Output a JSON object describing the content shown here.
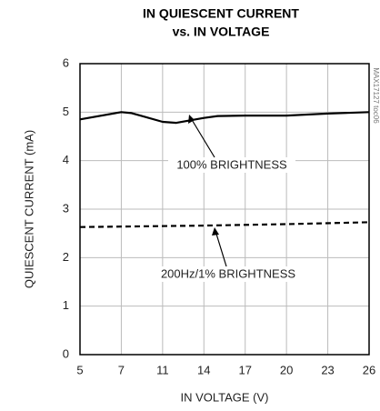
{
  "chart_data": {
    "type": "line",
    "title": [
      "IN QUIESCENT CURRENT",
      "vs. IN VOLTAGE"
    ],
    "x_label": "IN VOLTAGE (V)",
    "y_label": "QUIESCENT CURRENT (mA)",
    "side_note": "MAX17127 toc06",
    "xlim": [
      5,
      26
    ],
    "xticks": [
      5,
      7,
      11,
      14,
      17,
      20,
      23,
      26
    ],
    "ylim": [
      0,
      6
    ],
    "yticks": [
      0,
      1,
      2,
      3,
      4,
      5,
      6
    ],
    "grid": true,
    "series": [
      {
        "name": "100% BRIGHTNESS",
        "color": "#000000",
        "style": "solid",
        "x": [
          5,
          7,
          8,
          11,
          12,
          14,
          15,
          17,
          20,
          23,
          26
        ],
        "values": [
          4.85,
          5.0,
          4.98,
          4.8,
          4.78,
          4.88,
          4.92,
          4.93,
          4.93,
          4.97,
          5.0
        ]
      },
      {
        "name": "200Hz/1% BRIGHTNESS",
        "color": "#000000",
        "style": "dashed",
        "x": [
          5,
          14,
          20,
          26
        ],
        "values": [
          2.63,
          2.66,
          2.69,
          2.73
        ]
      }
    ]
  }
}
